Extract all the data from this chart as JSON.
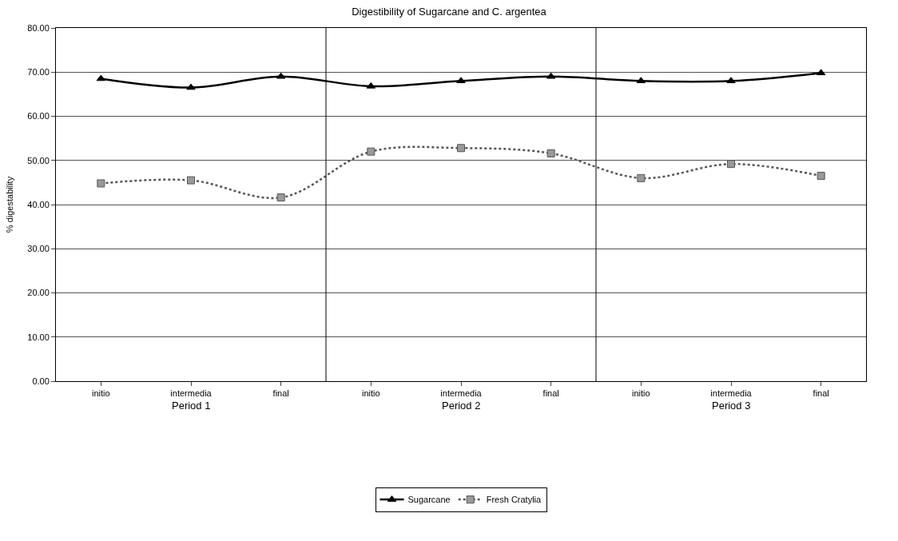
{
  "chart_data": {
    "type": "line",
    "title": "Digestibility of Sugarcane and C. argentea",
    "ylabel": "% digestability",
    "categories": [
      "initio",
      "intermedia",
      "final",
      "initio",
      "intermedia",
      "final",
      "initio",
      "intermedia",
      "final"
    ],
    "series": [
      {
        "name": "Sugarcane",
        "color": "#000000",
        "marker": "triangle",
        "line_style": "solid",
        "values": [
          68.5,
          66.5,
          69.0,
          66.8,
          68.0,
          69.0,
          68.0,
          68.0,
          69.8
        ]
      },
      {
        "name": "Fresh Cratylia",
        "color": "#555555",
        "marker": "square",
        "line_style": "dotted",
        "values": [
          44.8,
          45.5,
          41.6,
          52.0,
          52.8,
          51.6,
          46.0,
          49.2,
          46.5
        ]
      }
    ],
    "annotations": [
      "Period 1",
      "Period 2",
      "Period 3"
    ],
    "ylim": [
      0,
      80
    ],
    "yticks": [
      {
        "value": 0,
        "label": "0.00"
      },
      {
        "value": 10,
        "label": "10.00"
      },
      {
        "value": 20,
        "label": "20.00"
      },
      {
        "value": 30,
        "label": "30.00"
      },
      {
        "value": 40,
        "label": "40.00"
      },
      {
        "value": 50,
        "label": "50.00"
      },
      {
        "value": 60,
        "label": "60.00"
      },
      {
        "value": 70,
        "label": "70.00"
      },
      {
        "value": 80,
        "label": "80.00"
      }
    ],
    "grid": "y",
    "legend": "bottom"
  }
}
